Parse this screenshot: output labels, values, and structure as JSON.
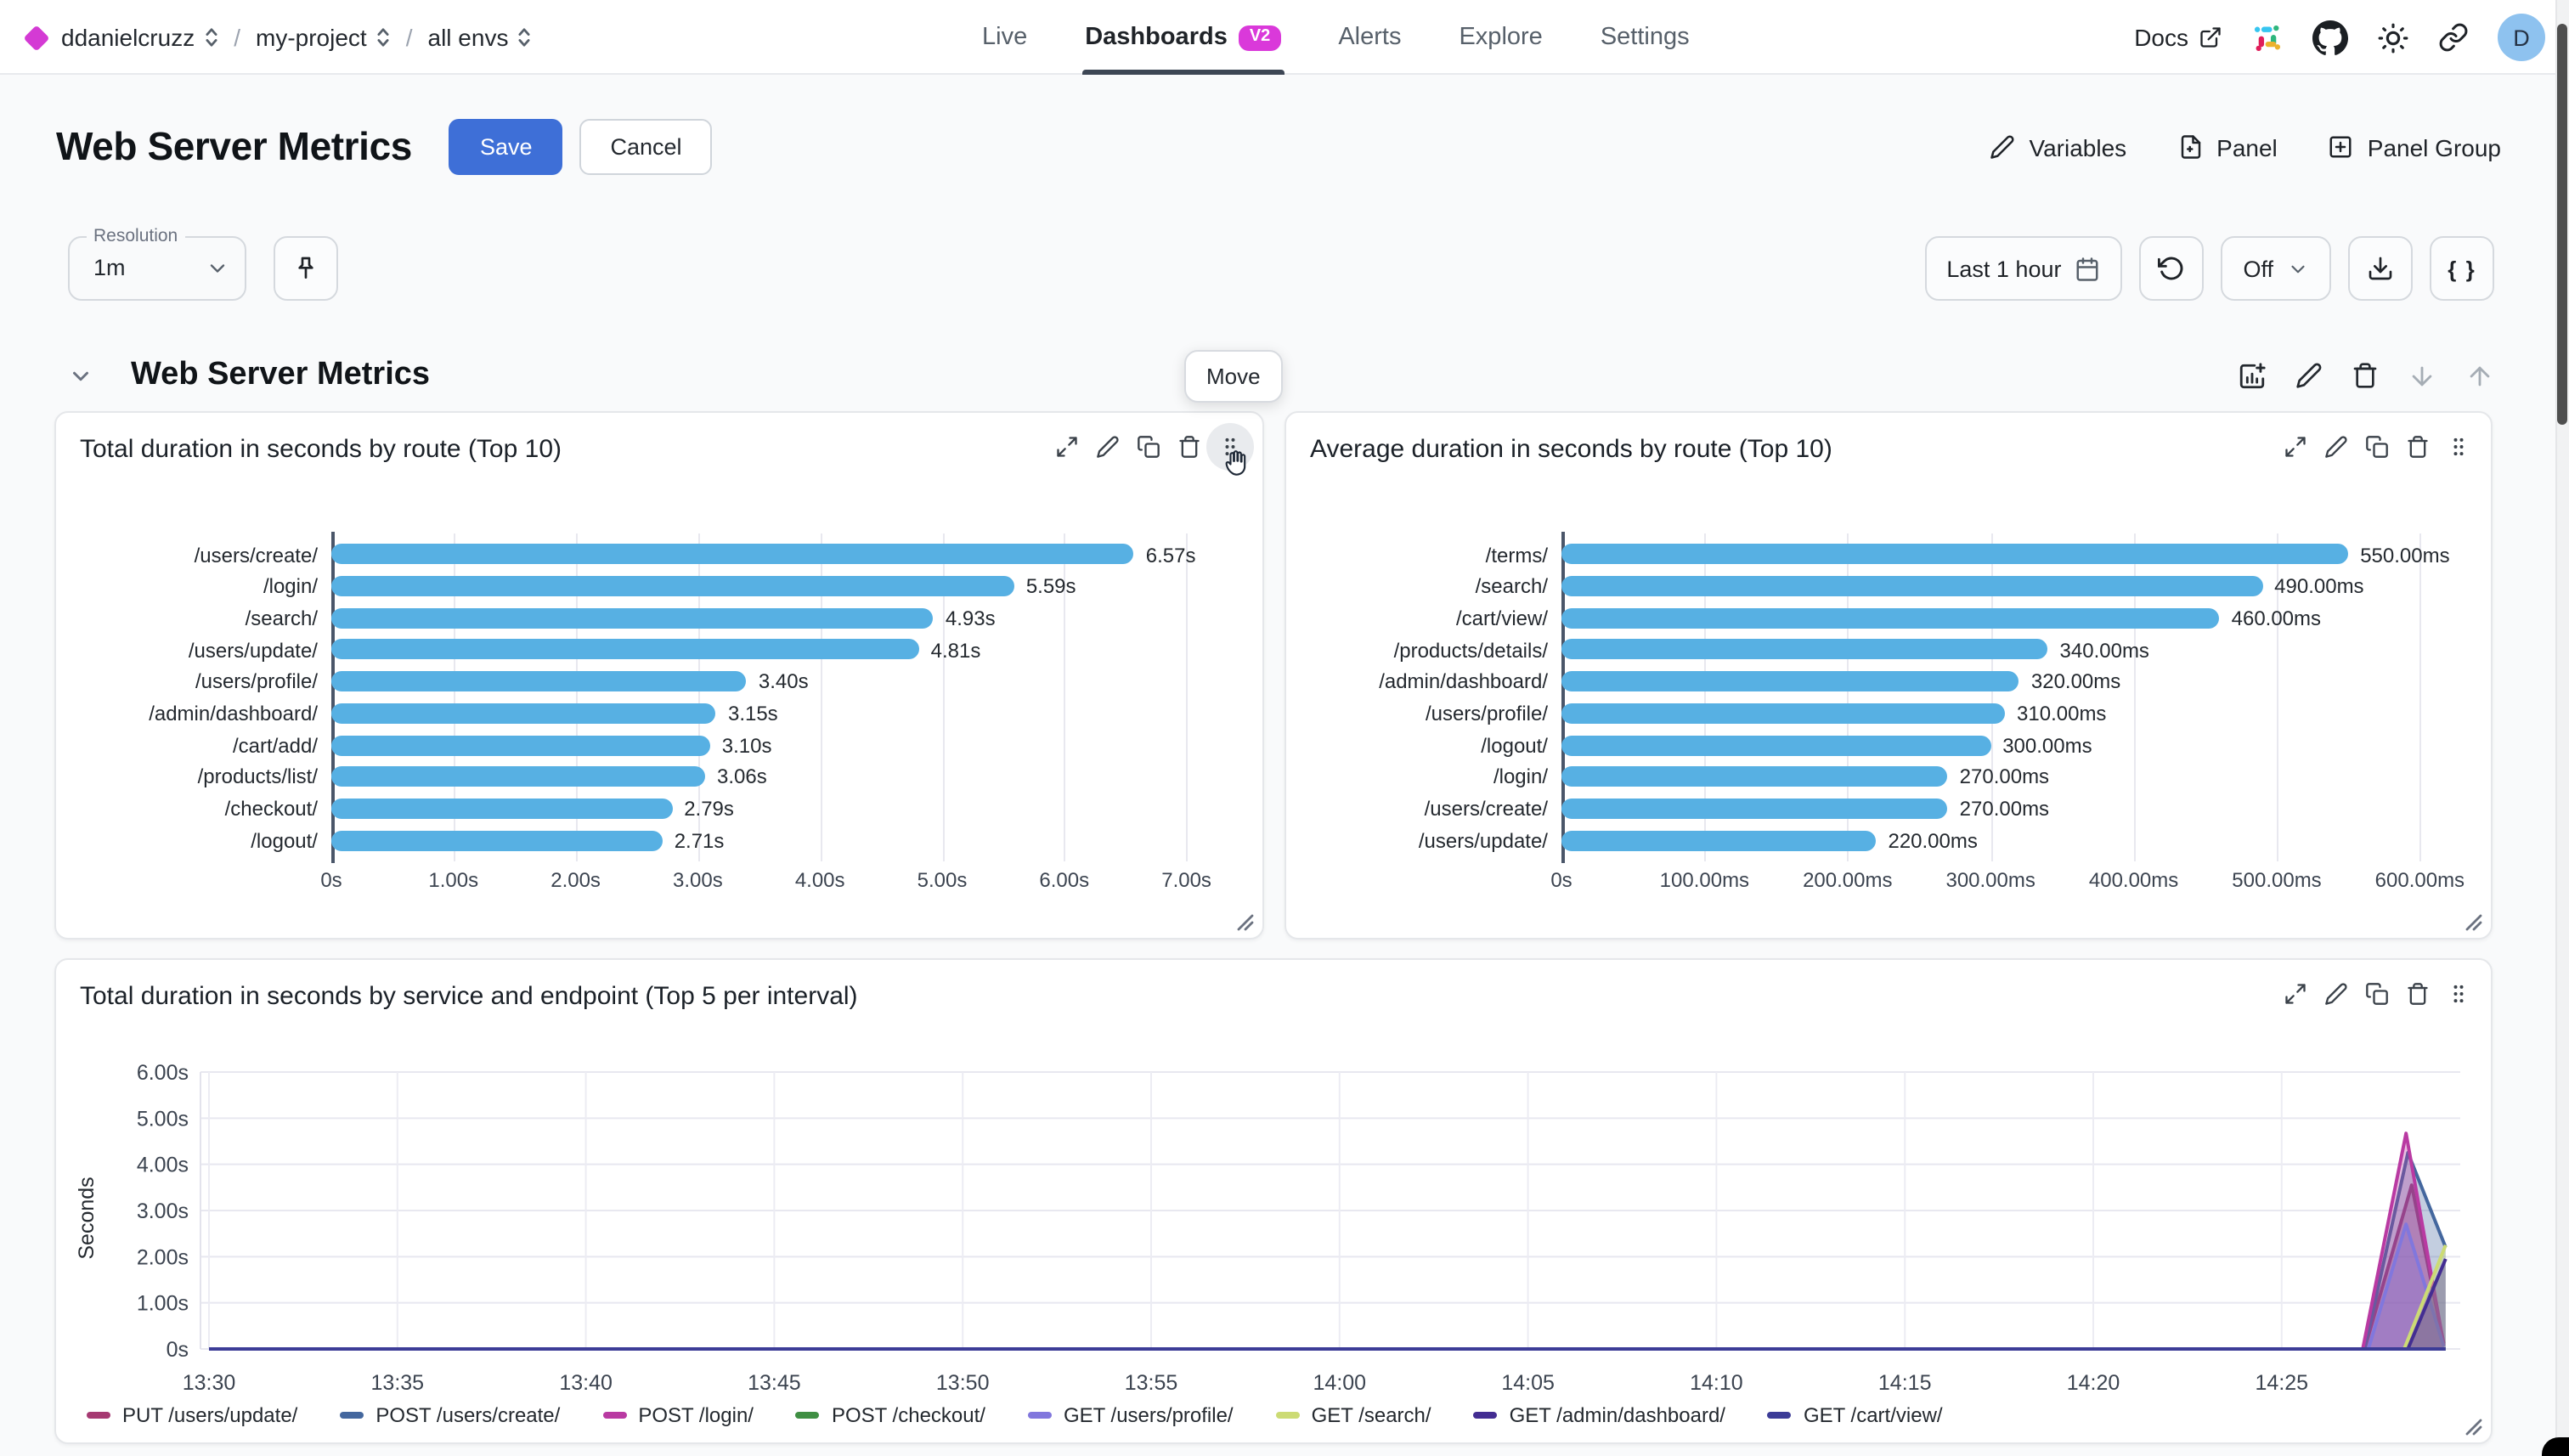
{
  "nav": {
    "org": "ddanielcruzz",
    "project": "my-project",
    "env": "all envs",
    "sep": "/",
    "tabs": [
      {
        "label": "Live",
        "active": false
      },
      {
        "label": "Dashboards",
        "active": true,
        "badge": "V2"
      },
      {
        "label": "Alerts",
        "active": false
      },
      {
        "label": "Explore",
        "active": false
      },
      {
        "label": "Settings",
        "active": false
      }
    ],
    "docs_label": "Docs",
    "avatar_letter": "D"
  },
  "header": {
    "title": "Web Server Metrics",
    "save_label": "Save",
    "cancel_label": "Cancel",
    "variables_label": "Variables",
    "panel_label": "Panel",
    "panel_group_label": "Panel Group"
  },
  "controls": {
    "resolution_label": "Resolution",
    "resolution_value": "1m",
    "time_range": "Last 1 hour",
    "refresh_interval": "Off",
    "braces_label": "{ }"
  },
  "section": {
    "title": "Web Server Metrics",
    "move_tooltip": "Move"
  },
  "colors": {
    "accent_magenta": "#d43ad4",
    "save_blue": "#3e6fd7",
    "bar_blue": "#57b0e3",
    "active_tab_underline": "#3d4654",
    "avatar_bg": "#8ec2ef"
  },
  "chart_data": [
    {
      "type": "bar",
      "orientation": "horizontal",
      "title": "Total duration in seconds by route (Top 10)",
      "categories": [
        "/users/create/",
        "/login/",
        "/search/",
        "/users/update/",
        "/users/profile/",
        "/admin/dashboard/",
        "/cart/add/",
        "/products/list/",
        "/checkout/",
        "/logout/"
      ],
      "values": [
        6.57,
        5.59,
        4.93,
        4.81,
        3.4,
        3.15,
        3.1,
        3.06,
        2.79,
        2.71
      ],
      "value_labels": [
        "6.57s",
        "5.59s",
        "4.93s",
        "4.81s",
        "3.40s",
        "3.15s",
        "3.10s",
        "3.06s",
        "2.79s",
        "2.71s"
      ],
      "x_ticks": [
        "0s",
        "1.00s",
        "2.00s",
        "3.00s",
        "4.00s",
        "5.00s",
        "6.00s",
        "7.00s"
      ],
      "x_tick_values": [
        0,
        1,
        2,
        3,
        4,
        5,
        6,
        7
      ],
      "xlim": [
        0,
        7.45
      ],
      "bar_color": "#57b0e3",
      "grid": true
    },
    {
      "type": "bar",
      "orientation": "horizontal",
      "title": "Average duration in seconds by route (Top 10)",
      "categories": [
        "/terms/",
        "/search/",
        "/cart/view/",
        "/products/details/",
        "/admin/dashboard/",
        "/users/profile/",
        "/logout/",
        "/login/",
        "/users/create/",
        "/users/update/"
      ],
      "values": [
        550,
        490,
        460,
        340,
        320,
        310,
        300,
        270,
        270,
        220
      ],
      "value_labels": [
        "550.00ms",
        "490.00ms",
        "460.00ms",
        "340.00ms",
        "320.00ms",
        "310.00ms",
        "300.00ms",
        "270.00ms",
        "270.00ms",
        "220.00ms"
      ],
      "x_ticks": [
        "0s",
        "100.00ms",
        "200.00ms",
        "300.00ms",
        "400.00ms",
        "500.00ms",
        "600.00ms"
      ],
      "x_tick_values": [
        0,
        100,
        200,
        300,
        400,
        500,
        600
      ],
      "xlim": [
        0,
        636
      ],
      "bar_color": "#57b0e3",
      "grid": true
    },
    {
      "type": "area",
      "title": "Total duration in seconds by service and endpoint (Top 5 per interval)",
      "ylabel": "Seconds",
      "y_ticks": [
        "0s",
        "1.00s",
        "2.00s",
        "3.00s",
        "4.00s",
        "5.00s",
        "6.00s"
      ],
      "y_tick_values": [
        0,
        1,
        2,
        3,
        4,
        5,
        6
      ],
      "ylim": [
        0,
        6
      ],
      "x_ticks": [
        "13:30",
        "13:35",
        "13:40",
        "13:45",
        "13:50",
        "13:55",
        "14:00",
        "14:05",
        "14:10",
        "14:15",
        "14:20",
        "14:25"
      ],
      "x_domain_minutes": [
        -0.25,
        59.7
      ],
      "grid": true,
      "legend_position": "bottom",
      "series": [
        {
          "name": "PUT /users/update/",
          "color": "#a63a72",
          "points": [
            [
              0,
              0
            ],
            [
              57.2,
              0
            ],
            [
              58.45,
              3.55
            ],
            [
              59.3,
              0.12
            ]
          ]
        },
        {
          "name": "POST /users/create/",
          "color": "#44679e",
          "points": [
            [
              0,
              0
            ],
            [
              57.2,
              0
            ],
            [
              58.35,
              4.25
            ],
            [
              59.35,
              2.2
            ]
          ]
        },
        {
          "name": "POST /login/",
          "color": "#b93aa2",
          "points": [
            [
              0,
              0
            ],
            [
              57.15,
              0
            ],
            [
              58.3,
              4.67
            ],
            [
              59.3,
              0.08
            ]
          ]
        },
        {
          "name": "POST /checkout/",
          "color": "#3f8f43",
          "points": [
            [
              0,
              0
            ],
            [
              59.35,
              0
            ]
          ]
        },
        {
          "name": "GET /users/profile/",
          "color": "#8177dd",
          "points": [
            [
              0,
              0
            ],
            [
              57.3,
              0
            ],
            [
              58.3,
              2.7
            ],
            [
              59.3,
              0.05
            ]
          ]
        },
        {
          "name": "GET /search/",
          "color": "#ccdb74",
          "points": [
            [
              0,
              0
            ],
            [
              58.25,
              0
            ],
            [
              59.35,
              2.25
            ]
          ]
        },
        {
          "name": "GET /admin/dashboard/",
          "color": "#432d92",
          "points": [
            [
              0,
              0
            ],
            [
              58.35,
              0
            ],
            [
              59.35,
              1.95
            ]
          ]
        },
        {
          "name": "GET /cart/view/",
          "color": "#3c3c97",
          "points": [
            [
              0,
              0
            ],
            [
              59.35,
              0
            ]
          ]
        }
      ]
    }
  ]
}
